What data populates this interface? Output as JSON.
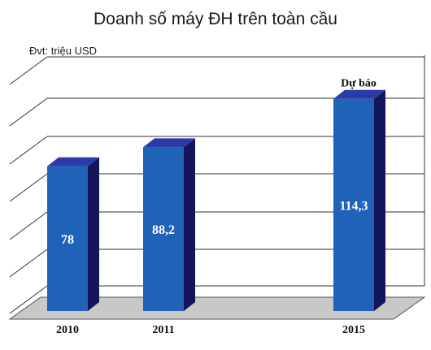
{
  "chart_data": {
    "type": "bar",
    "title": "Doanh số máy ĐH trên toàn cầu",
    "unit_label": "Đvt: triệu USD",
    "categories": [
      "2010",
      "2011",
      "2015"
    ],
    "values": [
      78,
      88.2,
      114.3
    ],
    "value_labels": [
      "78",
      "88,2",
      "114,3"
    ],
    "forecast_label": "Dự báo",
    "ylim": [
      0,
      140
    ],
    "grid": true,
    "colors": {
      "bar_front": "#1f62b8",
      "bar_side": "#14165a",
      "bar_top": "#2a3aa8",
      "floor": "#c8c8c8",
      "grid": "#333333"
    }
  }
}
